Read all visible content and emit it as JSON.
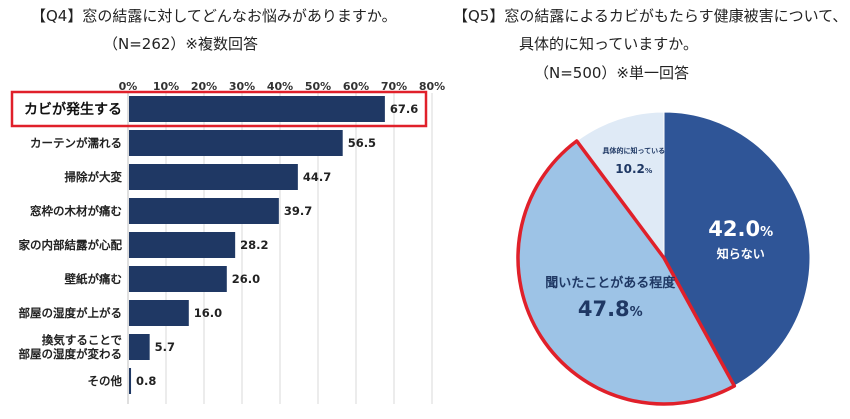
{
  "q4": {
    "title_line1": "【Q4】窓の結露に対してどんなお悩みがありますか。",
    "title_line2": "（N=262）※複数回答"
  },
  "q5": {
    "title_line1": "【Q5】窓の結露によるカビがもたらす健康被害について、",
    "title_line2": "具体的に知っていますか。",
    "title_line3": "（N=500）※単一回答"
  },
  "chart_data": [
    {
      "type": "bar",
      "orientation": "horizontal",
      "title": "【Q4】窓の結露に対してどんなお悩みがありますか。",
      "subtitle": "（N=262）※複数回答",
      "categories": [
        "カビが発生する",
        "カーテンが濡れる",
        "掃除が大変",
        "窓枠の木材が痛む",
        "家の内部結露が心配",
        "壁紙が痛む",
        "部屋の湿度が上がる",
        "換気することで部屋の湿度が変わる",
        "その他"
      ],
      "category_lines": [
        [
          "カビが発生する"
        ],
        [
          "カーテンが濡れる"
        ],
        [
          "掃除が大変"
        ],
        [
          "窓枠の木材が痛む"
        ],
        [
          "家の内部結露が心配"
        ],
        [
          "壁紙が痛む"
        ],
        [
          "部屋の湿度が上がる"
        ],
        [
          "換気することで",
          "部屋の湿度が変わる"
        ],
        [
          "その他"
        ]
      ],
      "values": [
        67.6,
        56.5,
        44.7,
        39.7,
        28.2,
        26.0,
        16.0,
        5.7,
        0.8
      ],
      "value_labels": [
        "67.6",
        "56.5",
        "44.7",
        "39.7",
        "28.2",
        "26.0",
        "16.0",
        "5.7",
        "0.8"
      ],
      "xlim": [
        0,
        80
      ],
      "ticks": [
        0,
        10,
        20,
        30,
        40,
        50,
        60,
        70,
        80
      ],
      "tick_labels": [
        "0%",
        "10%",
        "20%",
        "30%",
        "40%",
        "50%",
        "60%",
        "70%",
        "80%"
      ],
      "highlighted_category": "カビが発生する",
      "bar_color": "#1f3864",
      "highlight_color": "#e0202a",
      "grid": true
    },
    {
      "type": "pie",
      "title": "【Q5】窓の結露によるカビがもたらす健康被害について、具体的に知っていますか。",
      "subtitle": "（N=500）※単一回答",
      "slices": [
        {
          "label": "知らない",
          "value": 42.0,
          "value_label": "42.0",
          "unit": "%",
          "color": "#2f5597",
          "text_color": "#ffffff"
        },
        {
          "label": "聞いたことがある程度",
          "value": 47.8,
          "value_label": "47.8",
          "unit": "%",
          "color": "#9dc3e6",
          "text_color": "#1f3864",
          "highlighted": true
        },
        {
          "label": "具体的に知っている",
          "value": 10.2,
          "value_label": "10.2",
          "unit": "%",
          "color": "#dfeaf6",
          "text_color": "#1f3864"
        }
      ],
      "highlight_color": "#e0202a",
      "start": "12 o'clock",
      "direction": "clockwise"
    }
  ]
}
